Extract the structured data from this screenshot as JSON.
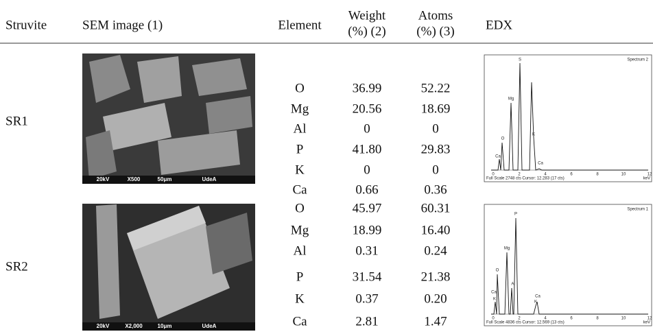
{
  "header": {
    "struvite": "Struvite",
    "sem": "SEM image (1)",
    "element": "Element",
    "weight": [
      "Weight",
      "(%) (2)"
    ],
    "atoms": [
      "Atoms",
      "(%) (3)"
    ],
    "edx": "EDX"
  },
  "samples": [
    {
      "name": "SR1",
      "sem_caption": [
        "20kV",
        "X500",
        "50μm",
        "UdeA"
      ],
      "edx": {
        "spectrum": "Spectrum 2",
        "footer": "Full Scale 2748 cts Cursor: 12.283  (17 cts)",
        "unit": "keV",
        "axis_ticks": [
          "0",
          "2",
          "4",
          "6",
          "8",
          "10",
          "12"
        ],
        "peaks": [
          "Ca",
          "O",
          "Mg",
          "S",
          "K",
          "Ca"
        ]
      },
      "rows": [
        [
          "O",
          "36.99",
          "52.22"
        ],
        [
          "Mg",
          "20.56",
          "18.69"
        ],
        [
          "Al",
          "0",
          "0"
        ],
        [
          "P",
          "41.80",
          "29.83"
        ],
        [
          "K",
          "0",
          "0"
        ],
        [
          "Ca",
          "0.66",
          "0.36"
        ]
      ]
    },
    {
      "name": "SR2",
      "sem_caption": [
        "20kV",
        "X2,000",
        "10μm",
        "UdeA"
      ],
      "edx": {
        "spectrum": "Spectrum 1",
        "footer": "Full Scale 4836 cts Cursor: 12.569  (13 cts)",
        "unit": "keV",
        "axis_ticks": [
          "0",
          "2",
          "4",
          "6",
          "8",
          "10",
          "12"
        ],
        "peaks": [
          "Ca",
          "K",
          "O",
          "Mg",
          "Al",
          "P",
          "Ca",
          "K"
        ]
      },
      "rows": [
        [
          "O",
          "45.97",
          "60.31"
        ],
        [
          "Mg",
          "18.99",
          "16.40"
        ],
        [
          "Al",
          "0.31",
          "0.24"
        ],
        [
          "P",
          "31.54",
          "21.38"
        ],
        [
          "K",
          "0.37",
          "0.20"
        ],
        [
          "Ca",
          "2.81",
          "1.47"
        ]
      ]
    }
  ]
}
